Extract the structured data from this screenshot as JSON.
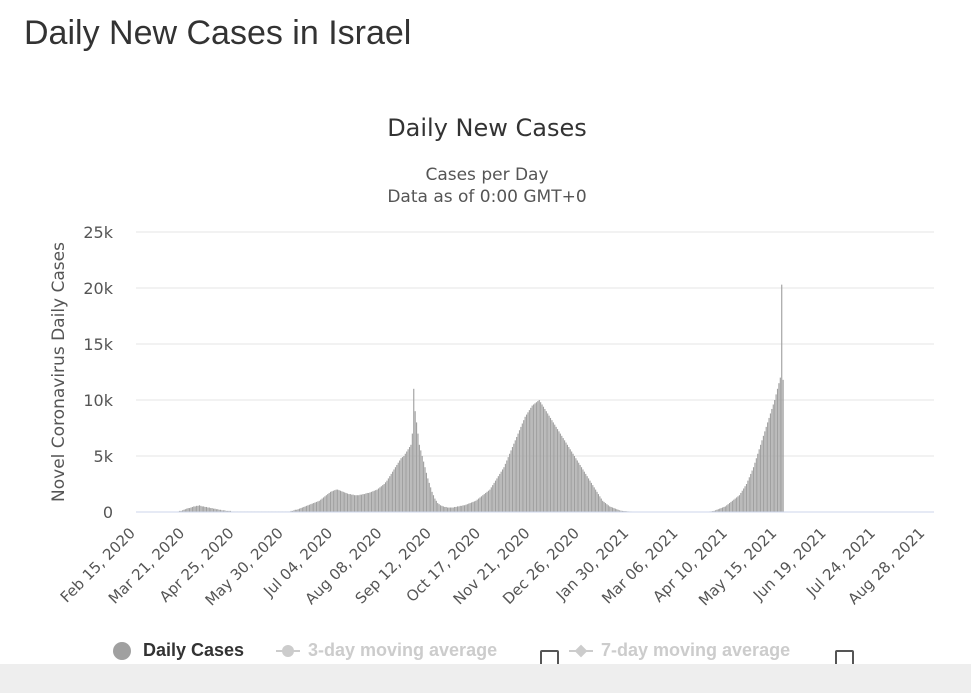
{
  "page": {
    "heading": "Daily New Cases in Israel"
  },
  "chart_data": {
    "type": "bar",
    "title": "Daily New Cases",
    "subtitle_lines": [
      "Cases per Day",
      "Data as of 0:00 GMT+0"
    ],
    "xlabel": "",
    "ylabel": "Novel Coronavirus Daily Cases",
    "ylim": [
      0,
      25000
    ],
    "y_ticks": [
      0,
      5000,
      10000,
      15000,
      20000,
      25000
    ],
    "y_tick_labels": [
      "0",
      "5k",
      "10k",
      "15k",
      "20k",
      "25k"
    ],
    "x_range": [
      "2020-02-15",
      "2021-09-03"
    ],
    "x_tick_labels": [
      "Feb 15, 2020",
      "Mar 21, 2020",
      "Apr 25, 2020",
      "May 30, 2020",
      "Jul 04, 2020",
      "Aug 08, 2020",
      "Sep 12, 2020",
      "Oct 17, 2020",
      "Nov 21, 2020",
      "Dec 26, 2020",
      "Jan 30, 2021",
      "Mar 06, 2021",
      "Apr 10, 2021",
      "May 15, 2021",
      "Jun 19, 2021",
      "Jul 24, 2021",
      "Aug 28, 2021"
    ],
    "grid": true,
    "legend_position": "bottom",
    "series": [
      {
        "name": "Daily Cases",
        "color": "#a0a0a0",
        "start_date": "2020-02-15",
        "frequency": "daily",
        "values": [
          0,
          0,
          0,
          0,
          0,
          0,
          0,
          0,
          0,
          0,
          0,
          0,
          0,
          0,
          0,
          0,
          0,
          0,
          0,
          0,
          0,
          0,
          0,
          0,
          0,
          0,
          0,
          0,
          0,
          0,
          50,
          100,
          100,
          150,
          200,
          250,
          300,
          350,
          350,
          400,
          450,
          500,
          500,
          550,
          550,
          600,
          550,
          500,
          500,
          450,
          450,
          400,
          400,
          350,
          350,
          300,
          300,
          250,
          250,
          200,
          200,
          150,
          150,
          150,
          100,
          100,
          100,
          100,
          50,
          50,
          50,
          50,
          50,
          50,
          50,
          50,
          50,
          50,
          50,
          50,
          50,
          50,
          50,
          50,
          50,
          50,
          50,
          50,
          50,
          50,
          50,
          50,
          50,
          50,
          50,
          50,
          50,
          50,
          50,
          50,
          50,
          50,
          50,
          50,
          50,
          50,
          50,
          50,
          50,
          50,
          100,
          100,
          150,
          200,
          200,
          250,
          300,
          350,
          400,
          450,
          500,
          550,
          600,
          650,
          700,
          750,
          800,
          850,
          900,
          950,
          1000,
          1100,
          1200,
          1300,
          1400,
          1500,
          1600,
          1700,
          1800,
          1850,
          1900,
          1950,
          2000,
          2000,
          1950,
          1900,
          1850,
          1800,
          1750,
          1700,
          1650,
          1600,
          1600,
          1550,
          1550,
          1500,
          1500,
          1500,
          1500,
          1550,
          1550,
          1600,
          1600,
          1650,
          1700,
          1700,
          1750,
          1800,
          1850,
          1900,
          1950,
          2000,
          2100,
          2200,
          2300,
          2400,
          2500,
          2650,
          2800,
          3000,
          3200,
          3400,
          3600,
          3800,
          4000,
          4200,
          4400,
          4600,
          4800,
          4900,
          5000,
          5200,
          5400,
          5600,
          5800,
          6000,
          7000,
          11000,
          9000,
          8000,
          7000,
          6000,
          5500,
          5000,
          4500,
          4000,
          3500,
          3000,
          2600,
          2200,
          1800,
          1500,
          1200,
          1000,
          800,
          700,
          600,
          550,
          500,
          450,
          450,
          400,
          400,
          400,
          400,
          400,
          450,
          450,
          500,
          500,
          550,
          550,
          600,
          600,
          650,
          700,
          750,
          800,
          850,
          900,
          950,
          1000,
          1100,
          1200,
          1300,
          1400,
          1500,
          1600,
          1700,
          1800,
          1900,
          2000,
          2200,
          2400,
          2600,
          2800,
          3000,
          3200,
          3400,
          3600,
          3800,
          4000,
          4300,
          4600,
          4900,
          5200,
          5500,
          5800,
          6100,
          6400,
          6700,
          7000,
          7300,
          7600,
          7900,
          8200,
          8500,
          8700,
          8900,
          9100,
          9300,
          9500,
          9600,
          9700,
          9800,
          9900,
          10000,
          9800,
          9600,
          9400,
          9200,
          9000,
          8800,
          8600,
          8400,
          8200,
          8000,
          7800,
          7600,
          7400,
          7200,
          7000,
          6800,
          6600,
          6400,
          6200,
          6000,
          5800,
          5600,
          5400,
          5200,
          5000,
          4800,
          4600,
          4400,
          4200,
          4000,
          3800,
          3600,
          3400,
          3200,
          3000,
          2800,
          2600,
          2400,
          2200,
          2000,
          1800,
          1600,
          1400,
          1200,
          1000,
          900,
          800,
          700,
          600,
          500,
          450,
          400,
          350,
          300,
          250,
          200,
          150,
          120,
          100,
          90,
          80,
          70,
          60,
          50,
          50,
          40,
          40,
          30,
          30,
          30,
          20,
          20,
          20,
          20,
          20,
          20,
          20,
          20,
          20,
          20,
          20,
          20,
          20,
          20,
          20,
          20,
          20,
          20,
          20,
          20,
          20,
          20,
          20,
          20,
          20,
          20,
          20,
          20,
          20,
          20,
          20,
          20,
          20,
          20,
          20,
          20,
          20,
          20,
          20,
          20,
          20,
          20,
          20,
          20,
          20,
          20,
          20,
          30,
          30,
          40,
          50,
          60,
          80,
          100,
          150,
          200,
          250,
          300,
          350,
          400,
          450,
          500,
          600,
          700,
          800,
          900,
          1000,
          1100,
          1200,
          1300,
          1400,
          1500,
          1700,
          1900,
          2100,
          2300,
          2500,
          2800,
          3100,
          3400,
          3700,
          4000,
          4400,
          4800,
          5200,
          5600,
          6000,
          6400,
          6800,
          7200,
          7600,
          8000,
          8400,
          8800,
          9200,
          9600,
          10000,
          10500,
          11000,
          11500,
          12000,
          20300,
          11800
        ]
      }
    ]
  },
  "legend": {
    "items": [
      {
        "label": "Daily Cases",
        "color": "#a0a0a0",
        "active": true
      },
      {
        "label": "3-day moving average",
        "color": "#cccccc",
        "active": false
      },
      {
        "label": "7-day moving average",
        "color": "#cccccc",
        "active": false
      }
    ]
  }
}
